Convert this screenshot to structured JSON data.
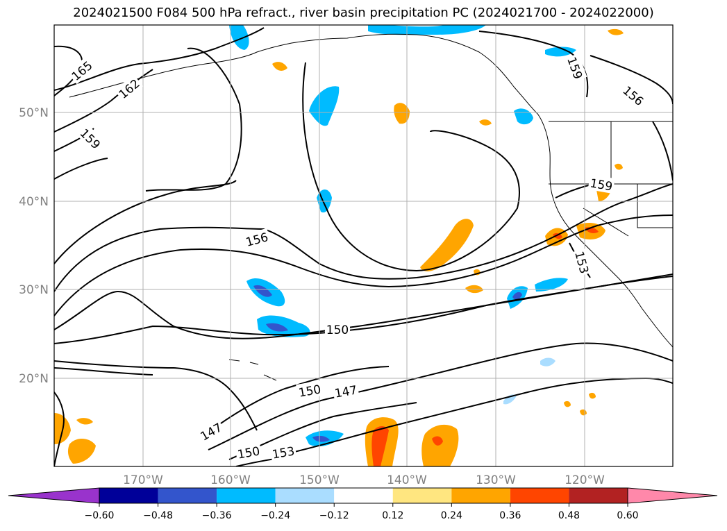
{
  "title": "2024021500 F084 500 hPa refract., river basin precipitation PC (2024021700 - 2024022000)",
  "map": {
    "lat_labels": [
      "50°N",
      "40°N",
      "30°N",
      "20°N"
    ],
    "lon_labels": [
      "170°W",
      "160°W",
      "150°W",
      "140°W",
      "130°W",
      "120°W"
    ],
    "contour_labels": [
      "165",
      "162",
      "159",
      "156",
      "150",
      "147",
      "150",
      "147",
      "150",
      "153",
      "159",
      "156",
      "159",
      "153"
    ]
  },
  "colorbar": {
    "ticks": [
      "−0.60",
      "−0.48",
      "−0.36",
      "−0.24",
      "−0.12",
      "0.12",
      "0.24",
      "0.36",
      "0.48",
      "0.60"
    ],
    "colors": [
      "#9933cc",
      "#000099",
      "#3355cc",
      "#00bbff",
      "#aaddff",
      "#ffffff",
      "#ffe680",
      "#ffa500",
      "#ff4500",
      "#b22222",
      "#ff88aa"
    ]
  }
}
